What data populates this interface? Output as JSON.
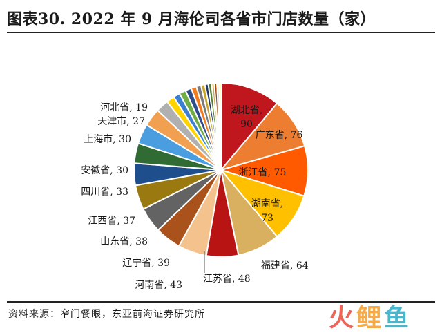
{
  "title": "图表30. 2022 年 9 月海伦司各省市门店数量（家）",
  "source": "资料来源：窄门餐眼，东亚前海证券研究所",
  "watermark": {
    "text": "火鲤鱼",
    "colors": [
      "#e84a3c",
      "#f39c2a",
      "#2aa8c4"
    ]
  },
  "chart_data": {
    "type": "pie",
    "title": "2022 年 9 月海伦司各省市门店数量（家）",
    "slices": [
      {
        "label": "湖北省",
        "value": 90,
        "color": "#c0161d"
      },
      {
        "label": "广东省",
        "value": 76,
        "color": "#ed7d31"
      },
      {
        "label": "浙江省",
        "value": 75,
        "color": "#ff5a00"
      },
      {
        "label": "湖南省",
        "value": 73,
        "color": "#ffc000"
      },
      {
        "label": "福建省",
        "value": 64,
        "color": "#d9b060"
      },
      {
        "label": "江苏省",
        "value": 48,
        "color": "#b81414"
      },
      {
        "label": "河南省",
        "value": 43,
        "color": "#f4c28c"
      },
      {
        "label": "辽宁省",
        "value": 39,
        "color": "#a9521c"
      },
      {
        "label": "山东省",
        "value": 38,
        "color": "#636363"
      },
      {
        "label": "江西省",
        "value": 37,
        "color": "#9a7a10"
      },
      {
        "label": "四川省",
        "value": 33,
        "color": "#1f4e8c"
      },
      {
        "label": "安徽省",
        "value": 30,
        "color": "#2f6b32"
      },
      {
        "label": "上海市",
        "value": 30,
        "color": "#4a9ee0"
      },
      {
        "label": "天津市",
        "value": 27,
        "color": "#f0a050"
      },
      {
        "label": "河北省",
        "value": 19,
        "color": "#b0b0b0"
      },
      {
        "label": "",
        "value": 12,
        "color": "#ffd400"
      },
      {
        "label": "",
        "value": 10,
        "color": "#3a7fd0"
      },
      {
        "label": "",
        "value": 10,
        "color": "#70ad47"
      },
      {
        "label": "",
        "value": 9,
        "color": "#2e4e8a"
      },
      {
        "label": "",
        "value": 8,
        "color": "#f47c20"
      },
      {
        "label": "",
        "value": 7,
        "color": "#7a7a7a"
      },
      {
        "label": "",
        "value": 6,
        "color": "#c9a227"
      },
      {
        "label": "",
        "value": 5,
        "color": "#1f3864"
      },
      {
        "label": "",
        "value": 5,
        "color": "#548235"
      },
      {
        "label": "",
        "value": 4,
        "color": "#d4a84a"
      },
      {
        "label": "",
        "value": 4,
        "color": "#9e480e"
      },
      {
        "label": "",
        "value": 3,
        "color": "#bdbdbd"
      },
      {
        "label": "",
        "value": 3,
        "color": "#e8d26a"
      }
    ],
    "start": "12 o'clock",
    "direction": "clockwise",
    "legend": "none"
  }
}
